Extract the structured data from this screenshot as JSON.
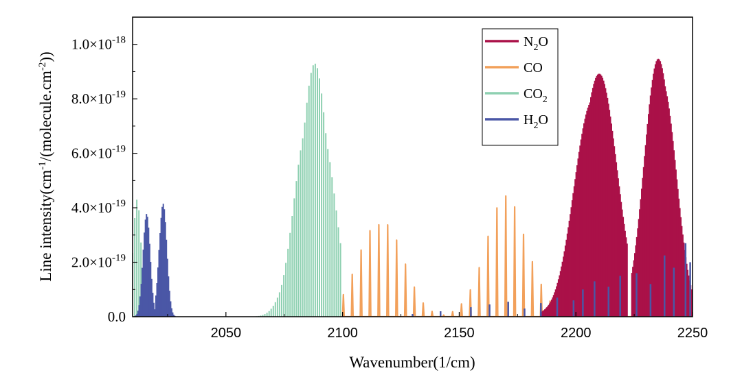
{
  "chart_data": {
    "type": "line",
    "title": "",
    "xlabel": "Wavenumber(1/cm)",
    "ylabel": {
      "prefix": "Line intensity(cm",
      "sup1": "-1",
      "middle": "/(molecule.cm",
      "sup2": "-2",
      "suffix": "))"
    },
    "xlim": [
      2010,
      2250
    ],
    "ylim": [
      0,
      1.1e-18
    ],
    "x_ticks": [
      2050,
      2100,
      2150,
      2200,
      2250
    ],
    "y_ticks": [
      {
        "value": 0,
        "mantissa": "0.0",
        "exponent": ""
      },
      {
        "value": 2e-19,
        "mantissa": "2.0×10",
        "exponent": "-19"
      },
      {
        "value": 4e-19,
        "mantissa": "4.0×10",
        "exponent": "-19"
      },
      {
        "value": 6e-19,
        "mantissa": "6.0×10",
        "exponent": "-19"
      },
      {
        "value": 8e-19,
        "mantissa": "8.0×10",
        "exponent": "-19"
      },
      {
        "value": 1e-18,
        "mantissa": "1.0×10",
        "exponent": "-18"
      }
    ],
    "legend_position": "top-right",
    "series": [
      {
        "name": "N2O",
        "label": {
          "base": "N",
          "sub": "2",
          "rest": "O"
        },
        "color": "#aa1148",
        "style": "filled",
        "bands": [
          {
            "center": 2209,
            "width": 12,
            "peak": 9.3e-19,
            "start": 2185,
            "end": 2222
          },
          {
            "center": 2236,
            "width": 9,
            "peak": 1e-18,
            "start": 2224,
            "end": 2250
          }
        ],
        "spacing": 0.42
      },
      {
        "name": "CO",
        "label": {
          "base": "CO",
          "sub": "",
          "rest": ""
        },
        "color": "#f2a05a",
        "style": "zigzag",
        "bands": [
          {
            "center": 2116,
            "width": 13,
            "peak": 3.75e-19,
            "start": 2100,
            "end": 2141
          },
          {
            "center": 2170,
            "width": 13,
            "peak": 4.45e-19,
            "start": 2143,
            "end": 2230
          }
        ],
        "spacing": 3.8
      },
      {
        "name": "CO2",
        "label": {
          "base": "CO",
          "sub": "2",
          "rest": ""
        },
        "color": "#8ed0b1",
        "style": "filled",
        "bands": [
          {
            "center": 2088,
            "width": 10,
            "peak": 9.3e-19,
            "start": 2055,
            "end": 2100
          },
          {
            "center": 2012,
            "width": 2.5,
            "peak": 4.45e-19,
            "start": 2010,
            "end": 2018
          }
        ],
        "spacing": 0.9
      },
      {
        "name": "H2O",
        "label": {
          "base": "H",
          "sub": "2",
          "rest": "O"
        },
        "color": "#4a57a6",
        "style": "filled",
        "bands": [
          {
            "center": 2016,
            "width": 2.2,
            "peak": 3.8e-19,
            "start": 2011,
            "end": 2020
          },
          {
            "center": 2023,
            "width": 2.3,
            "peak": 4.45e-19,
            "start": 2020,
            "end": 2029
          }
        ],
        "spacing": 0.45
      }
    ],
    "sparse_h2o_lines": [
      {
        "x": 2130,
        "y": 1e-20
      },
      {
        "x": 2142,
        "y": 2e-20
      },
      {
        "x": 2155,
        "y": 3.5e-20
      },
      {
        "x": 2163,
        "y": 4.5e-20
      },
      {
        "x": 2171,
        "y": 5.5e-20
      },
      {
        "x": 2178,
        "y": 3e-20
      },
      {
        "x": 2185,
        "y": 5e-20
      },
      {
        "x": 2192,
        "y": 7e-20
      },
      {
        "x": 2199,
        "y": 6e-20
      },
      {
        "x": 2203,
        "y": 1e-19
      },
      {
        "x": 2208,
        "y": 1.3e-19
      },
      {
        "x": 2214,
        "y": 1.1e-19
      },
      {
        "x": 2219,
        "y": 1.5e-19
      },
      {
        "x": 2226,
        "y": 1.6e-19
      },
      {
        "x": 2232,
        "y": 1.2e-19
      },
      {
        "x": 2238,
        "y": 2.25e-19
      },
      {
        "x": 2242,
        "y": 1.8e-19
      },
      {
        "x": 2247,
        "y": 2.7e-19
      },
      {
        "x": 2249,
        "y": 2e-19
      }
    ]
  }
}
